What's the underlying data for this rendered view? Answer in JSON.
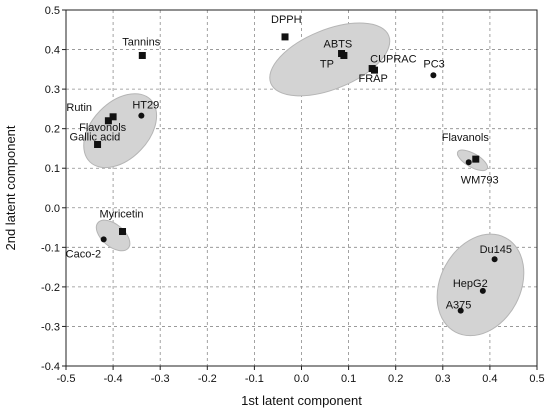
{
  "chart_data": {
    "type": "scatter",
    "title": "",
    "xlabel": "1st latent component",
    "ylabel": "2nd latent component",
    "xlim": [
      -0.5,
      0.5
    ],
    "ylim": [
      -0.4,
      0.5
    ],
    "xticks": [
      "-0.5",
      "-0.4",
      "-0.3",
      "-0.2",
      "-0.1",
      "0.0",
      "0.1",
      "0.2",
      "0.3",
      "0.4",
      "0.5"
    ],
    "yticks": [
      "-0.4",
      "-0.3",
      "-0.2",
      "-0.1",
      "0.0",
      "0.1",
      "0.2",
      "0.3",
      "0.4",
      "0.5"
    ],
    "grid": "dashed",
    "legend": "none",
    "colors": {
      "marker": "#111111",
      "ellipse_fill": "#d3d3d3",
      "ellipse_stroke": "#b5b5b5",
      "grid": "#8c8c8c"
    },
    "series": [
      {
        "marker": "square",
        "points": [
          {
            "label": "DPPH",
            "x": -0.035,
            "y": 0.432
          },
          {
            "label": "ABTS",
            "x": 0.085,
            "y": 0.39
          },
          {
            "label": "CUPRAC",
            "x": 0.15,
            "y": 0.352
          },
          {
            "label": "FRAP",
            "x": 0.155,
            "y": 0.348
          },
          {
            "label": "TP",
            "x": 0.09,
            "y": 0.385
          },
          {
            "label": "Tannins",
            "x": -0.338,
            "y": 0.385
          },
          {
            "label": "Rutin",
            "x": -0.41,
            "y": 0.22
          },
          {
            "label": "Flavonols",
            "x": -0.4,
            "y": 0.23
          },
          {
            "label": "Gallic acid",
            "x": -0.433,
            "y": 0.16
          },
          {
            "label": "Myricetin",
            "x": -0.38,
            "y": -0.06
          },
          {
            "label": "Flavanols",
            "x": 0.37,
            "y": 0.123
          }
        ]
      },
      {
        "marker": "circle",
        "points": [
          {
            "label": "PC3",
            "x": 0.28,
            "y": 0.335
          },
          {
            "label": "HT29",
            "x": -0.34,
            "y": 0.233
          },
          {
            "label": "Caco-2",
            "x": -0.42,
            "y": -0.08
          },
          {
            "label": "WM793",
            "x": 0.355,
            "y": 0.115
          },
          {
            "label": "Du145",
            "x": 0.41,
            "y": -0.13
          },
          {
            "label": "HepG2",
            "x": 0.385,
            "y": -0.21
          },
          {
            "label": "A375",
            "x": 0.338,
            "y": -0.26
          }
        ]
      }
    ],
    "groups": [
      {
        "center": [
          0.06,
          0.375
        ],
        "radii": [
          0.135,
          0.075
        ],
        "angle": -22
      },
      {
        "center": [
          -0.385,
          0.195
        ],
        "radii": [
          0.06,
          0.11
        ],
        "angle": 44
      },
      {
        "center": [
          -0.4,
          -0.07
        ],
        "radii": [
          0.042,
          0.028
        ],
        "angle": 40
      },
      {
        "center": [
          0.363,
          0.12
        ],
        "radii": [
          0.036,
          0.017
        ],
        "angle": 30
      },
      {
        "center": [
          0.38,
          -0.195
        ],
        "radii": [
          0.085,
          0.135
        ],
        "angle": 28
      }
    ]
  }
}
